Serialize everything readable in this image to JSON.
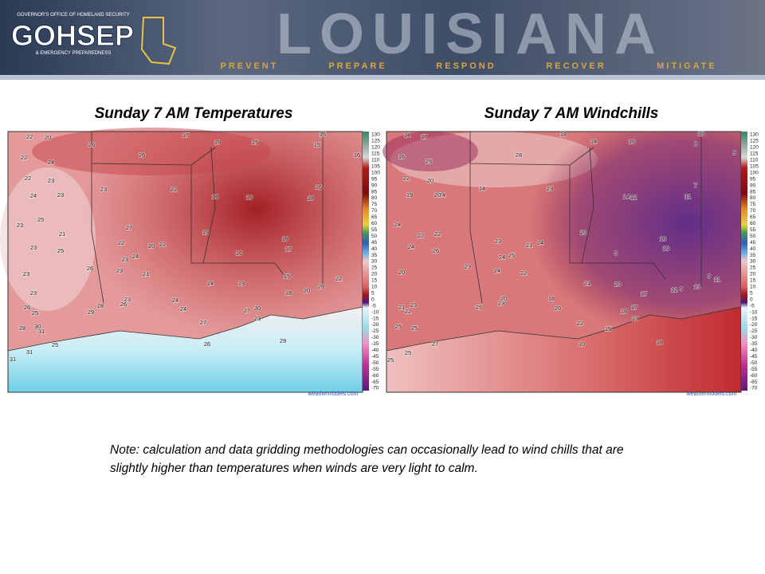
{
  "header": {
    "logo_top": "GOVERNOR'S OFFICE OF HOMELAND SECURITY",
    "logo": "GOHSEP",
    "logo_bottom": "& EMERGENCY PREPAREDNESS",
    "state": "LOUISIANA",
    "taglines": [
      "PREVENT",
      "PREPARE",
      "RESPOND",
      "RECOVER",
      "MITIGATE"
    ]
  },
  "panels": [
    {
      "title": "Sunday 7 AM Temperatures",
      "labels": [
        "22",
        "20",
        "17",
        "15",
        "26",
        "19",
        "15",
        "15",
        "16",
        "22",
        "24",
        "26",
        "22",
        "23",
        "23",
        "22",
        "16",
        "24",
        "23",
        "18",
        "16",
        "18",
        "25",
        "23",
        "27",
        "21",
        "19",
        "22",
        "20",
        "22",
        "18",
        "23",
        "25",
        "17",
        "24",
        "23",
        "16",
        "26",
        "23",
        "21",
        "23",
        "15",
        "22",
        "24",
        "19",
        "20",
        "23",
        "20",
        "24",
        "23",
        "26",
        "26",
        "28",
        "25",
        "24",
        "27",
        "30",
        "18",
        "23",
        "29",
        "28",
        "30",
        "31",
        "27",
        "25",
        "31",
        "31",
        "29",
        "26"
      ],
      "watermark": "weathermodels.com"
    },
    {
      "title": "Sunday 7 AM Windchills",
      "labels": [
        "14",
        "17",
        "18",
        "13",
        "14",
        "16",
        "8",
        "9",
        "16",
        "28",
        "25",
        "22",
        "20",
        "14",
        "24",
        "23",
        "7",
        "19",
        "20",
        "14",
        "12",
        "11",
        "24",
        "22",
        "22",
        "20",
        "23",
        "21",
        "24",
        "10",
        "24",
        "26",
        "9",
        "10",
        "24",
        "25",
        "23",
        "24",
        "22",
        "20",
        "21",
        "20",
        "12",
        "9",
        "13",
        "9",
        "11",
        "17",
        "18",
        "23",
        "20",
        "23",
        "21",
        "22",
        "25",
        "20",
        "17",
        "18",
        "13",
        "25",
        "22",
        "15",
        "25",
        "18",
        "10",
        "27",
        "25",
        "25"
      ],
      "watermark": "weathermodels.com"
    }
  ],
  "colorbar_ticks": [
    130,
    125,
    120,
    115,
    110,
    105,
    100,
    95,
    90,
    85,
    80,
    75,
    70,
    65,
    60,
    55,
    50,
    45,
    40,
    35,
    30,
    25,
    20,
    15,
    10,
    5,
    0,
    -5,
    -10,
    -15,
    -20,
    -25,
    -30,
    -35,
    -40,
    -45,
    -50,
    -55,
    -60,
    -65,
    -70
  ],
  "note": [
    "Note: calculation and data gridding methodologies can occasionally lead to wind chills that are",
    "slightly higher than temperatures when winds are very light to calm."
  ]
}
